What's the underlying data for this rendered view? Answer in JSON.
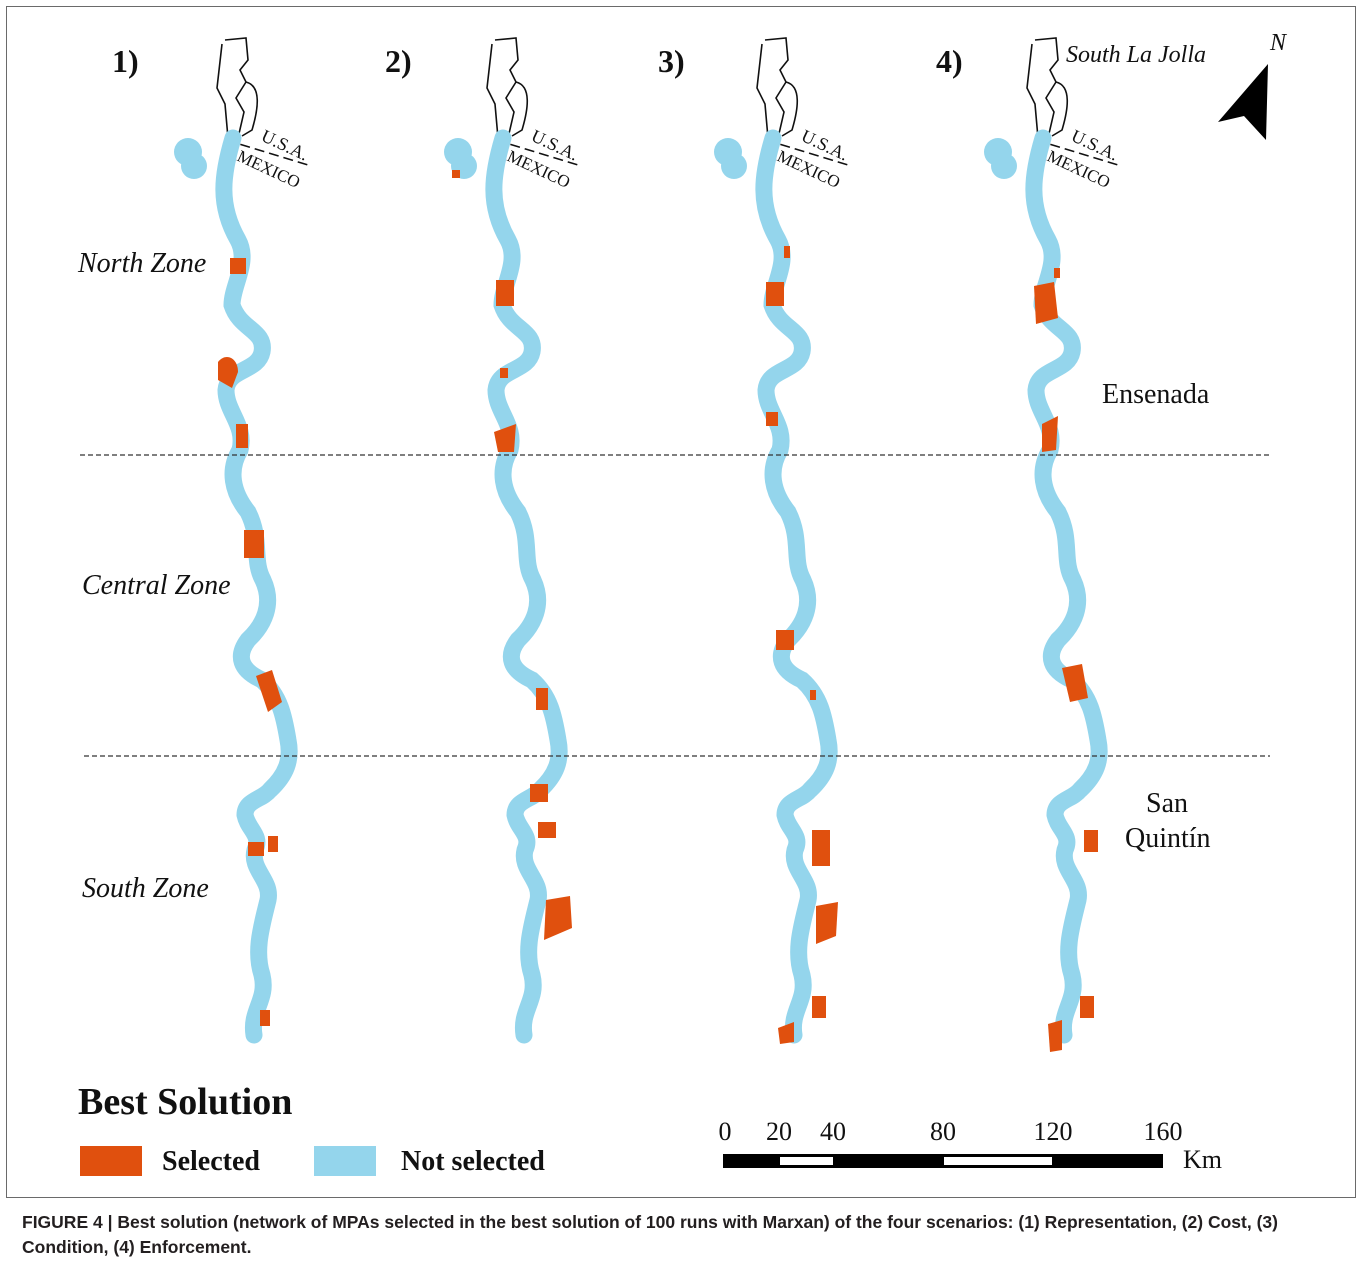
{
  "panels": [
    {
      "label": "1)",
      "selected": "#e0500e",
      "not_selected": "#94d5ec"
    },
    {
      "label": "2)"
    },
    {
      "label": "3)"
    },
    {
      "label": "4)"
    }
  ],
  "place_labels": {
    "south_la_jolla": "South La Jolla",
    "usa": "U.S.A.",
    "mexico": "MEXICO",
    "ensenada": "Ensenada",
    "san": "San",
    "quintin": "Quintín"
  },
  "zones": {
    "north": "North Zone",
    "central": "Central Zone",
    "south": "South Zone"
  },
  "north_arrow": {
    "label": "N"
  },
  "legend": {
    "title": "Best Solution",
    "items": [
      {
        "label": "Selected",
        "color": "#e0500e"
      },
      {
        "label": "Not selected",
        "color": "#94d5ec"
      }
    ]
  },
  "scale_bar": {
    "ticks": [
      "0",
      "20",
      "40",
      "80",
      "120",
      "160"
    ],
    "unit": "Km"
  },
  "caption": "FIGURE 4 | Best solution (network of MPAs selected in the best solution of 100 runs with Marxan) of the four scenarios: (1) Representation, (2) Cost, (3) Condition, (4) Enforcement."
}
